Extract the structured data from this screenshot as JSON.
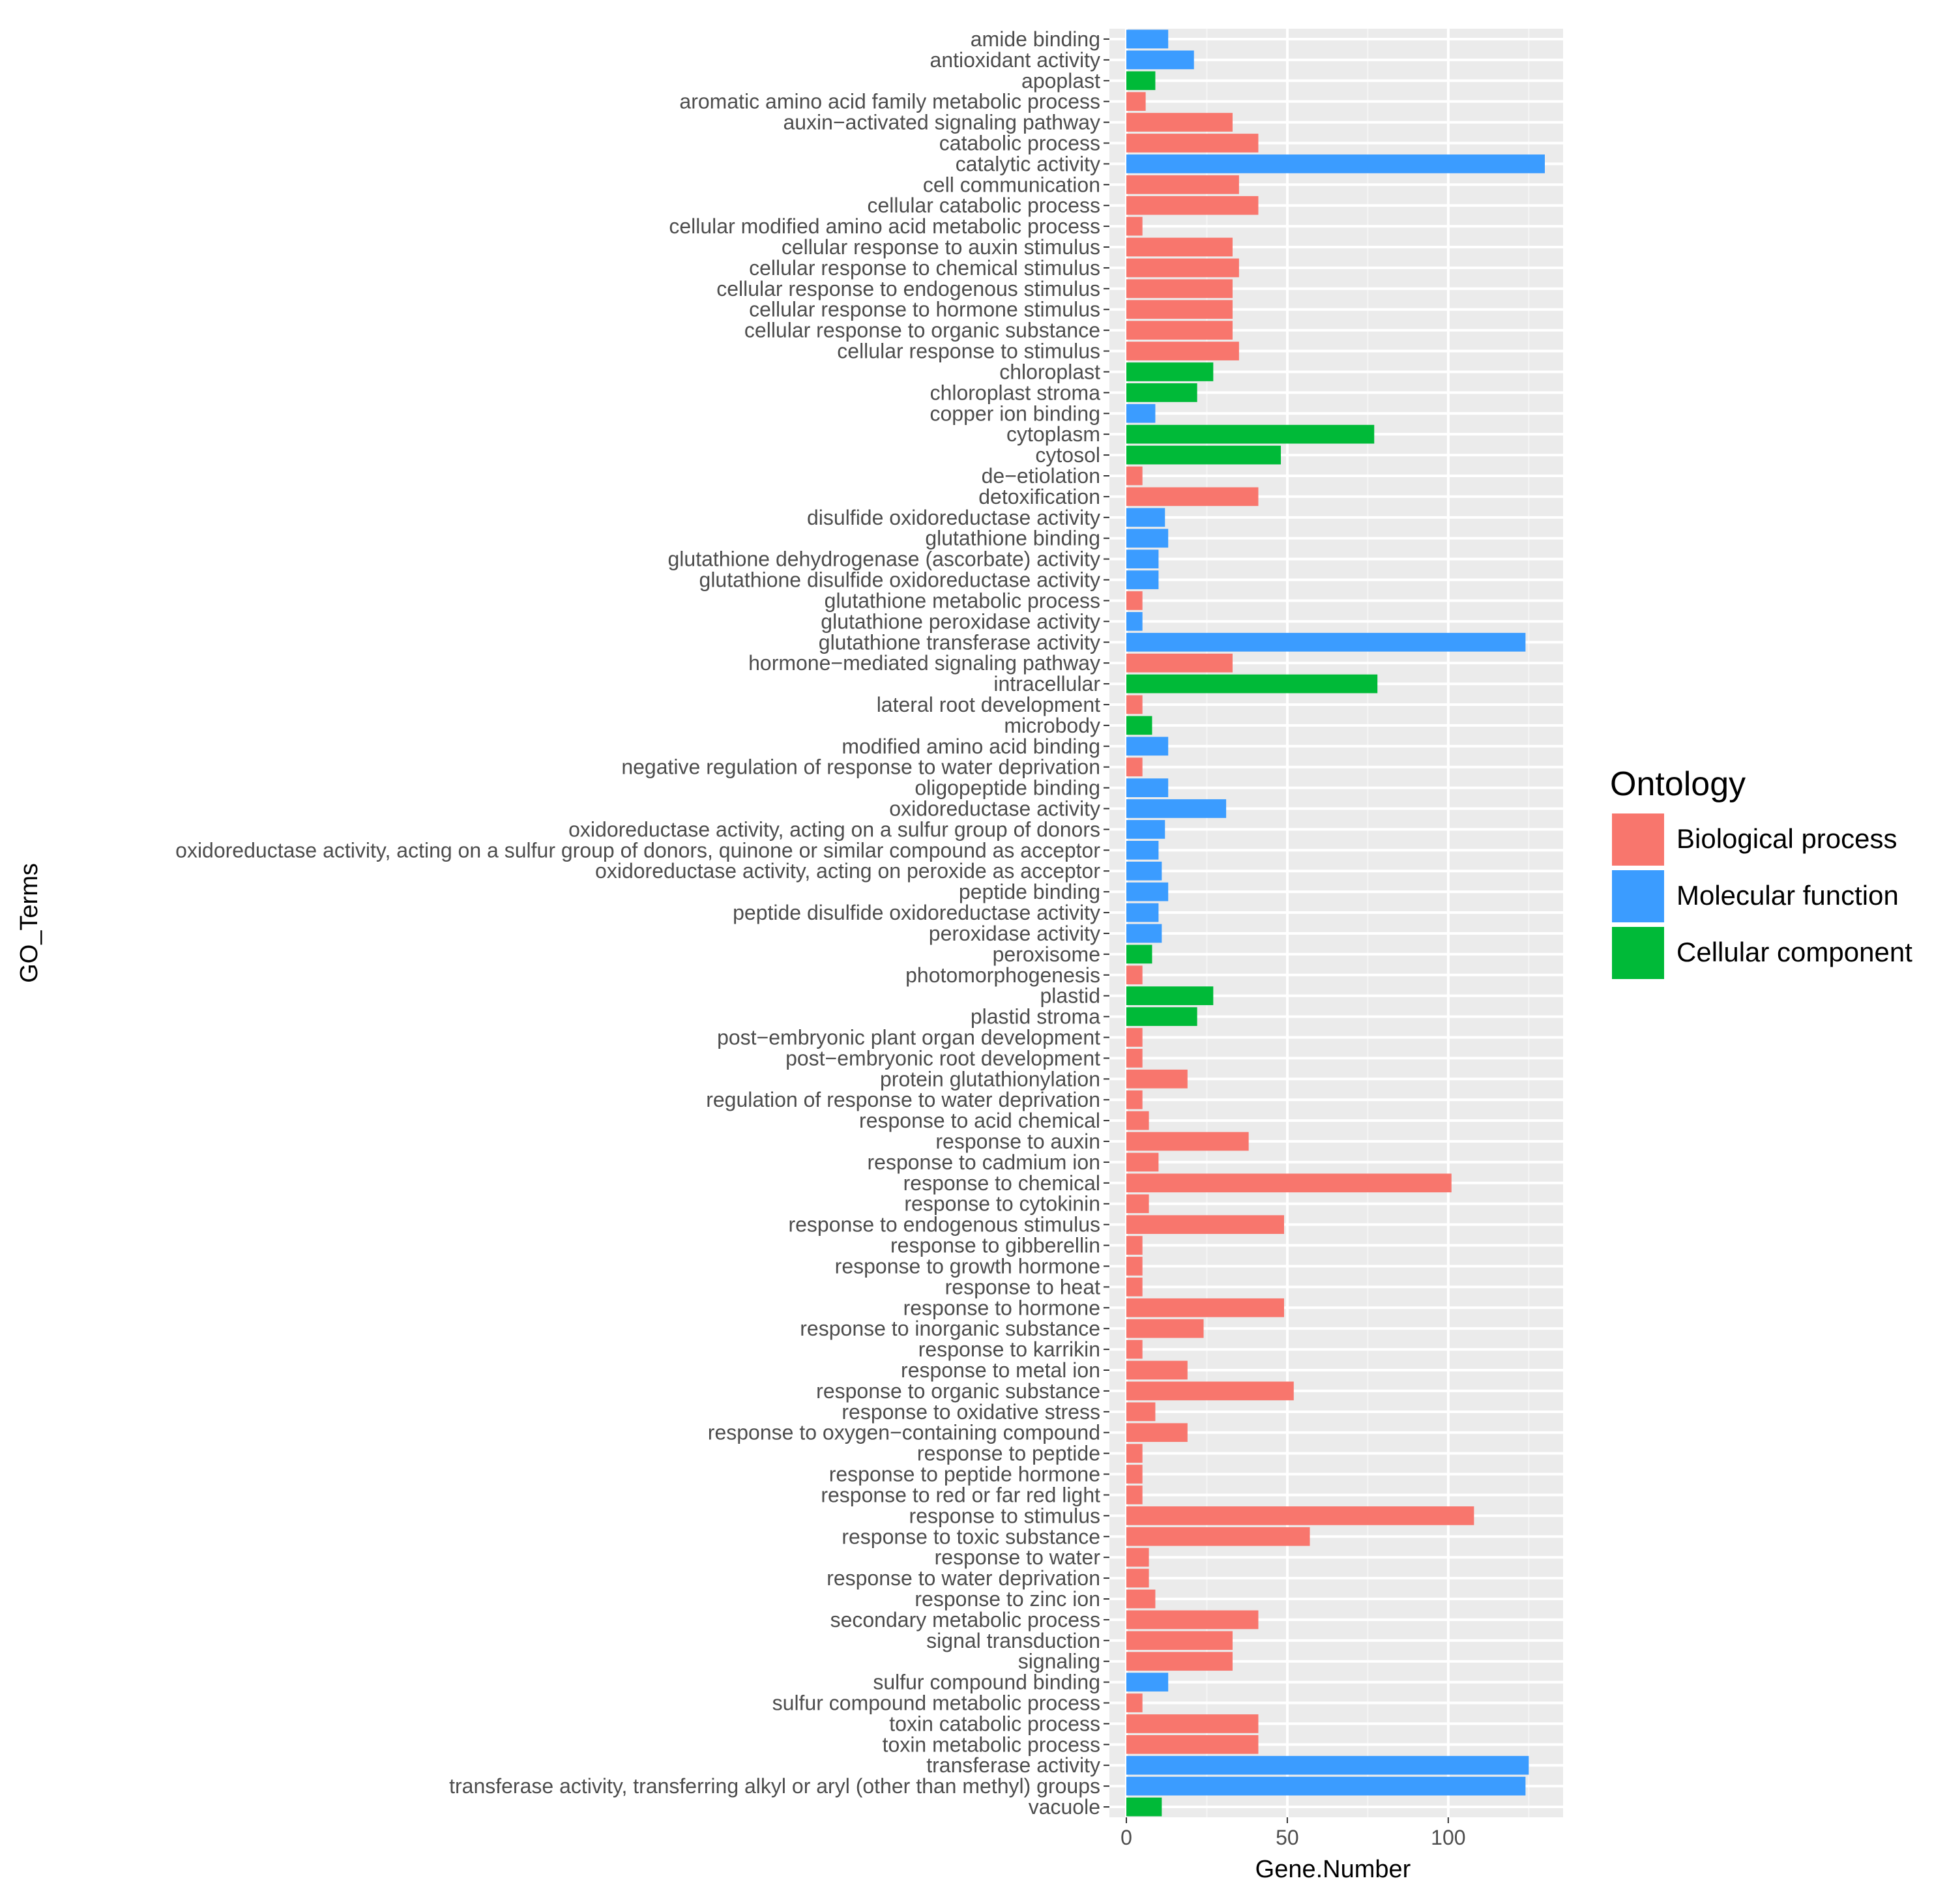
{
  "chart_data": {
    "type": "bar",
    "orientation": "horizontal",
    "title": "",
    "xlabel": "Gene.Number",
    "ylabel": "GO_Terms",
    "xlim": [
      0,
      137
    ],
    "xticks": [
      0,
      50,
      100
    ],
    "grid": true,
    "legend": {
      "title": "Ontology",
      "placement": "right",
      "entries": [
        {
          "key": "BP",
          "label": "Biological process",
          "color": "#F8766D"
        },
        {
          "key": "MF",
          "label": "Molecular function",
          "color": "#3B9CFF"
        },
        {
          "key": "CC",
          "label": "Cellular component",
          "color": "#00BA38"
        }
      ]
    },
    "categories": [
      {
        "term": "amide binding",
        "value": 13,
        "ontology": "MF"
      },
      {
        "term": "antioxidant activity",
        "value": 21,
        "ontology": "MF"
      },
      {
        "term": "apoplast",
        "value": 9,
        "ontology": "CC"
      },
      {
        "term": "aromatic amino acid family metabolic process",
        "value": 6,
        "ontology": "BP"
      },
      {
        "term": "auxin−activated signaling pathway",
        "value": 33,
        "ontology": "BP"
      },
      {
        "term": "catabolic process",
        "value": 41,
        "ontology": "BP"
      },
      {
        "term": "catalytic activity",
        "value": 130,
        "ontology": "MF"
      },
      {
        "term": "cell communication",
        "value": 35,
        "ontology": "BP"
      },
      {
        "term": "cellular catabolic process",
        "value": 41,
        "ontology": "BP"
      },
      {
        "term": "cellular modified amino acid metabolic process",
        "value": 5,
        "ontology": "BP"
      },
      {
        "term": "cellular response to auxin stimulus",
        "value": 33,
        "ontology": "BP"
      },
      {
        "term": "cellular response to chemical stimulus",
        "value": 35,
        "ontology": "BP"
      },
      {
        "term": "cellular response to endogenous stimulus",
        "value": 33,
        "ontology": "BP"
      },
      {
        "term": "cellular response to hormone stimulus",
        "value": 33,
        "ontology": "BP"
      },
      {
        "term": "cellular response to organic substance",
        "value": 33,
        "ontology": "BP"
      },
      {
        "term": "cellular response to stimulus",
        "value": 35,
        "ontology": "BP"
      },
      {
        "term": "chloroplast",
        "value": 27,
        "ontology": "CC"
      },
      {
        "term": "chloroplast stroma",
        "value": 22,
        "ontology": "CC"
      },
      {
        "term": "copper ion binding",
        "value": 9,
        "ontology": "MF"
      },
      {
        "term": "cytoplasm",
        "value": 77,
        "ontology": "CC"
      },
      {
        "term": "cytosol",
        "value": 48,
        "ontology": "CC"
      },
      {
        "term": "de−etiolation",
        "value": 5,
        "ontology": "BP"
      },
      {
        "term": "detoxification",
        "value": 41,
        "ontology": "BP"
      },
      {
        "term": "disulfide oxidoreductase activity",
        "value": 12,
        "ontology": "MF"
      },
      {
        "term": "glutathione binding",
        "value": 13,
        "ontology": "MF"
      },
      {
        "term": "glutathione dehydrogenase (ascorbate) activity",
        "value": 10,
        "ontology": "MF"
      },
      {
        "term": "glutathione disulfide oxidoreductase activity",
        "value": 10,
        "ontology": "MF"
      },
      {
        "term": "glutathione metabolic process",
        "value": 5,
        "ontology": "BP"
      },
      {
        "term": "glutathione peroxidase activity",
        "value": 5,
        "ontology": "MF"
      },
      {
        "term": "glutathione transferase activity",
        "value": 124,
        "ontology": "MF"
      },
      {
        "term": "hormone−mediated signaling pathway",
        "value": 33,
        "ontology": "BP"
      },
      {
        "term": "intracellular",
        "value": 78,
        "ontology": "CC"
      },
      {
        "term": "lateral root development",
        "value": 5,
        "ontology": "BP"
      },
      {
        "term": "microbody",
        "value": 8,
        "ontology": "CC"
      },
      {
        "term": "modified amino acid binding",
        "value": 13,
        "ontology": "MF"
      },
      {
        "term": "negative regulation of response to water deprivation",
        "value": 5,
        "ontology": "BP"
      },
      {
        "term": "oligopeptide binding",
        "value": 13,
        "ontology": "MF"
      },
      {
        "term": "oxidoreductase activity",
        "value": 31,
        "ontology": "MF"
      },
      {
        "term": "oxidoreductase activity, acting on a sulfur group of donors",
        "value": 12,
        "ontology": "MF"
      },
      {
        "term": "oxidoreductase activity, acting on a sulfur group of donors, quinone or similar compound as acceptor",
        "value": 10,
        "ontology": "MF"
      },
      {
        "term": "oxidoreductase activity, acting on peroxide as acceptor",
        "value": 11,
        "ontology": "MF"
      },
      {
        "term": "peptide binding",
        "value": 13,
        "ontology": "MF"
      },
      {
        "term": "peptide disulfide oxidoreductase activity",
        "value": 10,
        "ontology": "MF"
      },
      {
        "term": "peroxidase activity",
        "value": 11,
        "ontology": "MF"
      },
      {
        "term": "peroxisome",
        "value": 8,
        "ontology": "CC"
      },
      {
        "term": "photomorphogenesis",
        "value": 5,
        "ontology": "BP"
      },
      {
        "term": "plastid",
        "value": 27,
        "ontology": "CC"
      },
      {
        "term": "plastid stroma",
        "value": 22,
        "ontology": "CC"
      },
      {
        "term": "post−embryonic plant organ development",
        "value": 5,
        "ontology": "BP"
      },
      {
        "term": "post−embryonic root development",
        "value": 5,
        "ontology": "BP"
      },
      {
        "term": "protein glutathionylation",
        "value": 19,
        "ontology": "BP"
      },
      {
        "term": "regulation of response to water deprivation",
        "value": 5,
        "ontology": "BP"
      },
      {
        "term": "response to acid chemical",
        "value": 7,
        "ontology": "BP"
      },
      {
        "term": "response to auxin",
        "value": 38,
        "ontology": "BP"
      },
      {
        "term": "response to cadmium ion",
        "value": 10,
        "ontology": "BP"
      },
      {
        "term": "response to chemical",
        "value": 101,
        "ontology": "BP"
      },
      {
        "term": "response to cytokinin",
        "value": 7,
        "ontology": "BP"
      },
      {
        "term": "response to endogenous stimulus",
        "value": 49,
        "ontology": "BP"
      },
      {
        "term": "response to gibberellin",
        "value": 5,
        "ontology": "BP"
      },
      {
        "term": "response to growth hormone",
        "value": 5,
        "ontology": "BP"
      },
      {
        "term": "response to heat",
        "value": 5,
        "ontology": "BP"
      },
      {
        "term": "response to hormone",
        "value": 49,
        "ontology": "BP"
      },
      {
        "term": "response to inorganic substance",
        "value": 24,
        "ontology": "BP"
      },
      {
        "term": "response to karrikin",
        "value": 5,
        "ontology": "BP"
      },
      {
        "term": "response to metal ion",
        "value": 19,
        "ontology": "BP"
      },
      {
        "term": "response to organic substance",
        "value": 52,
        "ontology": "BP"
      },
      {
        "term": "response to oxidative stress",
        "value": 9,
        "ontology": "BP"
      },
      {
        "term": "response to oxygen−containing compound",
        "value": 19,
        "ontology": "BP"
      },
      {
        "term": "response to peptide",
        "value": 5,
        "ontology": "BP"
      },
      {
        "term": "response to peptide hormone",
        "value": 5,
        "ontology": "BP"
      },
      {
        "term": "response to red or far red light",
        "value": 5,
        "ontology": "BP"
      },
      {
        "term": "response to stimulus",
        "value": 108,
        "ontology": "BP"
      },
      {
        "term": "response to toxic substance",
        "value": 57,
        "ontology": "BP"
      },
      {
        "term": "response to water",
        "value": 7,
        "ontology": "BP"
      },
      {
        "term": "response to water deprivation",
        "value": 7,
        "ontology": "BP"
      },
      {
        "term": "response to zinc ion",
        "value": 9,
        "ontology": "BP"
      },
      {
        "term": "secondary metabolic process",
        "value": 41,
        "ontology": "BP"
      },
      {
        "term": "signal transduction",
        "value": 33,
        "ontology": "BP"
      },
      {
        "term": "signaling",
        "value": 33,
        "ontology": "BP"
      },
      {
        "term": "sulfur compound binding",
        "value": 13,
        "ontology": "MF"
      },
      {
        "term": "sulfur compound metabolic process",
        "value": 5,
        "ontology": "BP"
      },
      {
        "term": "toxin catabolic process",
        "value": 41,
        "ontology": "BP"
      },
      {
        "term": "toxin metabolic process",
        "value": 41,
        "ontology": "BP"
      },
      {
        "term": "transferase activity",
        "value": 125,
        "ontology": "MF"
      },
      {
        "term": "transferase activity, transferring alkyl or aryl (other than methyl) groups",
        "value": 124,
        "ontology": "MF"
      },
      {
        "term": "vacuole",
        "value": 11,
        "ontology": "CC"
      }
    ]
  }
}
